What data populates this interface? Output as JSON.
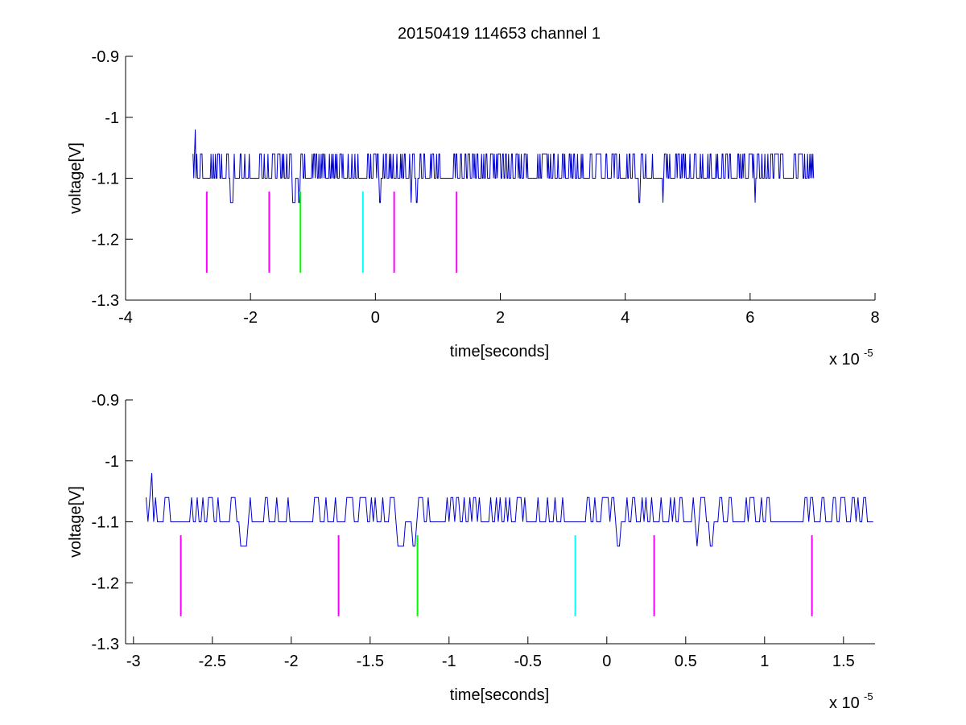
{
  "figure_title": "20150419 114653 channel 1",
  "colors": {
    "trace": "#0000cc",
    "marker_magenta": "#ff00ff",
    "marker_green": "#00ff00",
    "marker_cyan": "#00ffff",
    "axes": "#000000"
  },
  "chart_data": [
    {
      "type": "line",
      "title": "20150419 114653 channel 1",
      "xlabel": "time[seconds]",
      "ylabel": "voltage[V]",
      "x_exponent_label": "x 10",
      "x_exponent": "-5",
      "xlim": [
        -4,
        8
      ],
      "ylim": [
        -1.3,
        -0.9
      ],
      "y_reversed": true,
      "xticks": [
        -4,
        -2,
        0,
        2,
        4,
        6,
        8
      ],
      "xtick_labels": [
        "-4",
        "-2",
        "0",
        "2",
        "4",
        "6",
        "8"
      ],
      "yticks": [
        -0.9,
        -1,
        -1.1,
        -1.2,
        -1.3
      ],
      "ytick_labels": [
        "-0.9",
        "-1",
        "-1.1",
        "-1.2",
        "-1.3"
      ],
      "grid": false,
      "series": [
        {
          "x_range": [
            -2.92,
            7.02
          ],
          "baseline": -1.1,
          "high_level": -1.06,
          "low_level": -1.14,
          "peak": {
            "x": -2.88,
            "y": -1.02
          }
        }
      ],
      "markers": [
        {
          "x": -2.7,
          "y_top": -1.122,
          "y_bottom": -1.255,
          "color": "magenta"
        },
        {
          "x": -1.7,
          "y_top": -1.122,
          "y_bottom": -1.255,
          "color": "magenta"
        },
        {
          "x": -1.2,
          "y_top": -1.122,
          "y_bottom": -1.255,
          "color": "green"
        },
        {
          "x": -0.2,
          "y_top": -1.122,
          "y_bottom": -1.255,
          "color": "cyan"
        },
        {
          "x": 0.3,
          "y_top": -1.122,
          "y_bottom": -1.255,
          "color": "magenta"
        },
        {
          "x": 1.3,
          "y_top": -1.122,
          "y_bottom": -1.255,
          "color": "magenta"
        }
      ]
    },
    {
      "type": "line",
      "xlabel": "time[seconds]",
      "ylabel": "voltage[V]",
      "x_exponent_label": "x 10",
      "x_exponent": "-5",
      "xlim": [
        -3.05,
        1.7
      ],
      "ylim": [
        -1.3,
        -0.9
      ],
      "y_reversed": true,
      "xticks": [
        -3,
        -2.5,
        -2,
        -1.5,
        -1,
        -0.5,
        0,
        0.5,
        1,
        1.5
      ],
      "xtick_labels": [
        "-3",
        "-2.5",
        "-2",
        "-1.5",
        "-1",
        "-0.5",
        "0",
        "0.5",
        "1",
        "1.5"
      ],
      "yticks": [
        -0.9,
        -1,
        -1.1,
        -1.2,
        -1.3
      ],
      "ytick_labels": [
        "-0.9",
        "-1",
        "-1.1",
        "-1.2",
        "-1.3"
      ],
      "grid": false,
      "series": [
        {
          "x_range": [
            -2.92,
            1.7
          ],
          "baseline": -1.1,
          "high_level": -1.06,
          "low_level": -1.14,
          "peak": {
            "x": -2.88,
            "y": -1.02
          }
        }
      ],
      "markers": [
        {
          "x": -2.7,
          "y_top": -1.122,
          "y_bottom": -1.255,
          "color": "magenta"
        },
        {
          "x": -1.7,
          "y_top": -1.122,
          "y_bottom": -1.255,
          "color": "magenta"
        },
        {
          "x": -1.2,
          "y_top": -1.122,
          "y_bottom": -1.255,
          "color": "green"
        },
        {
          "x": -0.2,
          "y_top": -1.122,
          "y_bottom": -1.255,
          "color": "cyan"
        },
        {
          "x": 0.3,
          "y_top": -1.122,
          "y_bottom": -1.255,
          "color": "magenta"
        },
        {
          "x": 1.3,
          "y_top": -1.122,
          "y_bottom": -1.255,
          "color": "magenta"
        }
      ]
    }
  ]
}
